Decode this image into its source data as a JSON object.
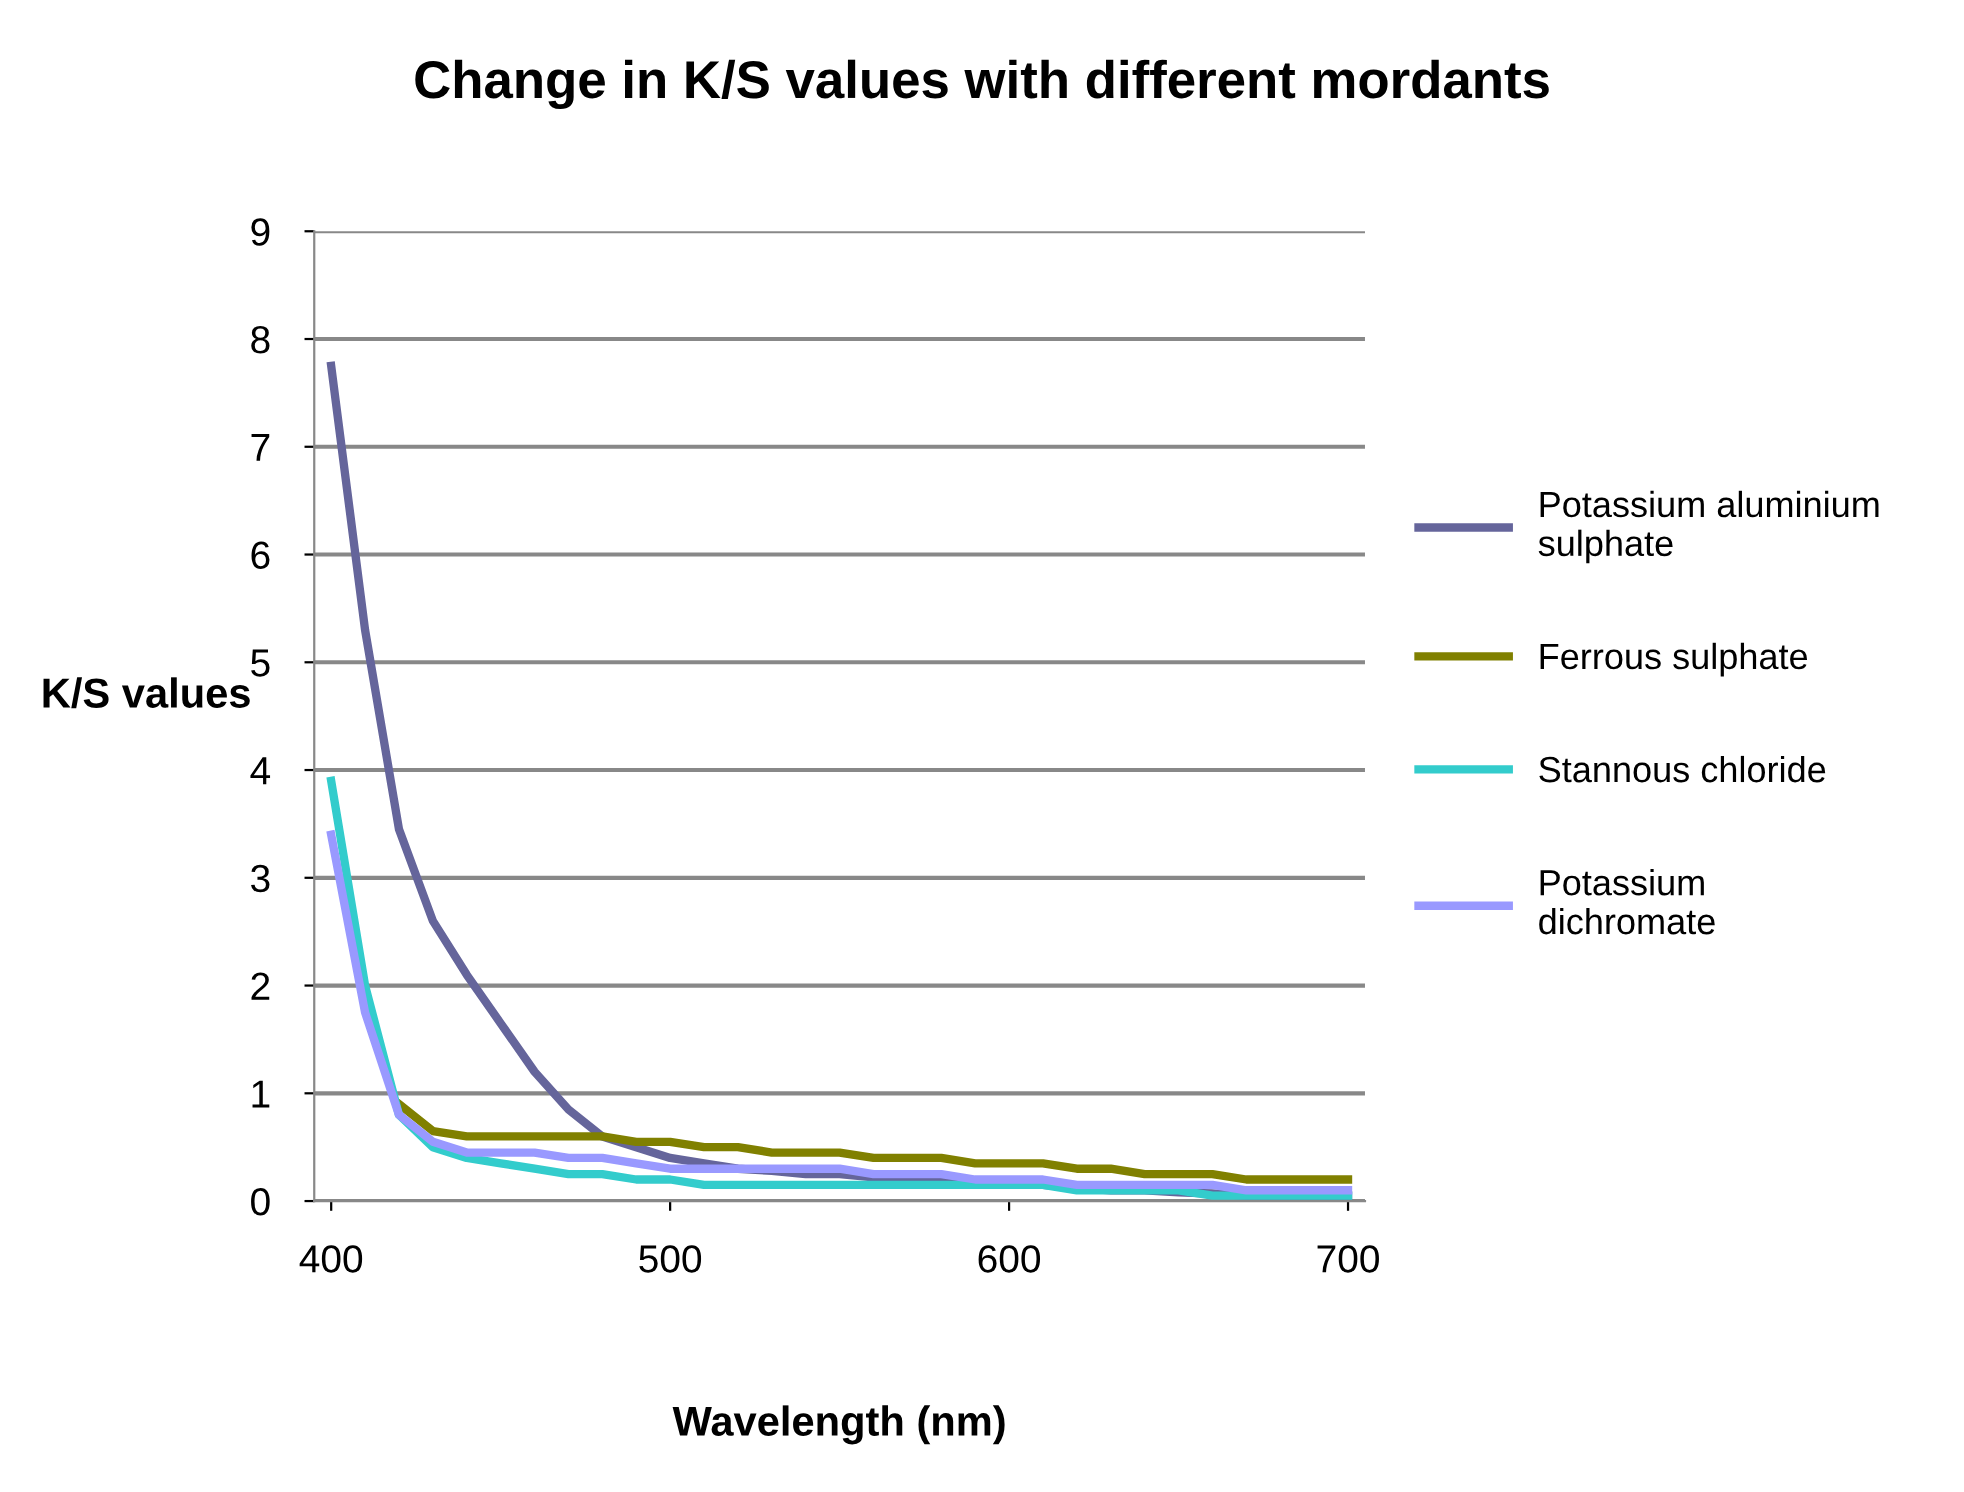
{
  "chart_data": {
    "type": "line",
    "title": "Change in K/S values with different mordants",
    "xlabel": "Wavelength (nm)",
    "ylabel": "K/S values",
    "x": [
      400,
      410,
      420,
      430,
      440,
      450,
      460,
      470,
      480,
      490,
      500,
      510,
      520,
      530,
      540,
      550,
      560,
      570,
      580,
      590,
      600,
      610,
      620,
      630,
      640,
      650,
      660,
      670,
      680,
      690,
      700
    ],
    "series": [
      {
        "name": "Potassium aluminium sulphate",
        "color": "#65659b",
        "values": [
          7.75,
          5.3,
          3.45,
          2.6,
          2.1,
          1.65,
          1.2,
          0.85,
          0.6,
          0.5,
          0.4,
          0.35,
          0.3,
          0.28,
          0.25,
          0.25,
          0.22,
          0.2,
          0.2,
          0.18,
          0.18,
          0.15,
          0.12,
          0.1,
          0.1,
          0.08,
          0.07,
          0.05,
          0.05,
          0.05,
          0.05
        ]
      },
      {
        "name": "Ferrous sulphate",
        "color": "#808000",
        "values": [
          null,
          null,
          0.9,
          0.65,
          0.6,
          0.6,
          0.6,
          0.6,
          0.6,
          0.55,
          0.55,
          0.5,
          0.5,
          0.45,
          0.45,
          0.45,
          0.4,
          0.4,
          0.4,
          0.35,
          0.35,
          0.35,
          0.3,
          0.3,
          0.25,
          0.25,
          0.25,
          0.2,
          0.2,
          0.2,
          0.2
        ]
      },
      {
        "name": "Stannous chloride",
        "color": "#33cccc",
        "values": [
          3.9,
          2.0,
          0.8,
          0.5,
          0.4,
          0.35,
          0.3,
          0.25,
          0.25,
          0.2,
          0.2,
          0.15,
          0.15,
          0.15,
          0.15,
          0.15,
          0.15,
          0.15,
          0.15,
          0.15,
          0.15,
          0.15,
          0.1,
          0.1,
          0.1,
          0.1,
          0.05,
          0.05,
          0.05,
          0.05,
          0.05
        ]
      },
      {
        "name": "Potassium dichromate",
        "color": "#9999ff",
        "values": [
          3.4,
          1.75,
          0.8,
          0.55,
          0.45,
          0.45,
          0.45,
          0.4,
          0.4,
          0.35,
          0.3,
          0.3,
          0.3,
          0.3,
          0.3,
          0.3,
          0.25,
          0.25,
          0.25,
          0.2,
          0.2,
          0.2,
          0.15,
          0.15,
          0.15,
          0.15,
          0.15,
          0.1,
          0.1,
          0.1,
          0.1
        ]
      }
    ],
    "xlim": [
      395,
      705
    ],
    "xticks": [
      400,
      500,
      600,
      700
    ],
    "ylim": [
      0,
      9
    ],
    "yticks": [
      0,
      1,
      2,
      3,
      4,
      5,
      6,
      7,
      8,
      9
    ],
    "grid": "y",
    "legend": "right",
    "marker": "none",
    "line_style": "solid"
  }
}
